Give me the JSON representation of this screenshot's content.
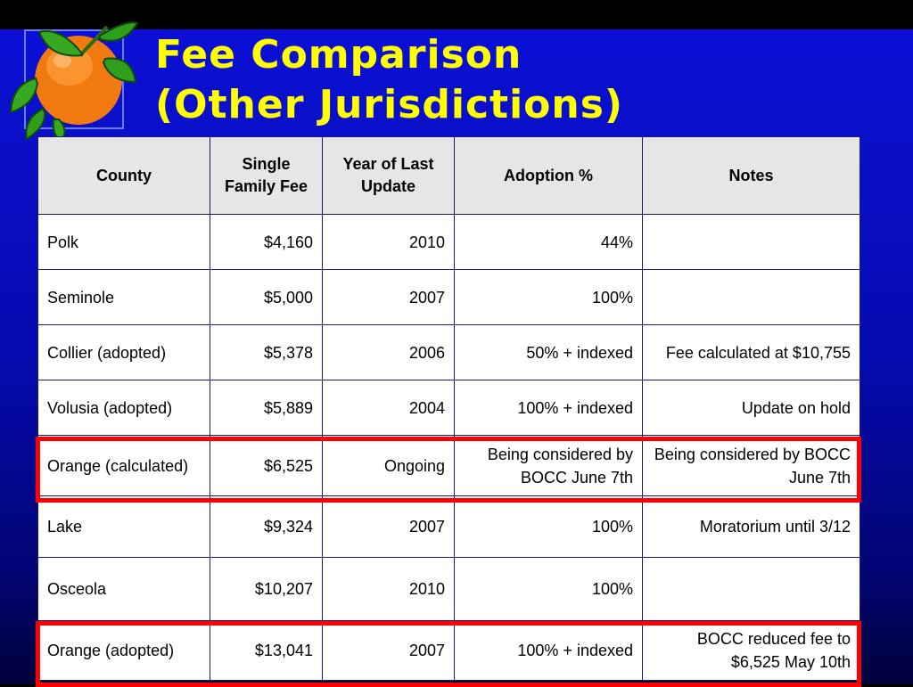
{
  "title": {
    "line1": "Fee Comparison",
    "line2": "(Other Jurisdictions)"
  },
  "logo": {
    "icon": "orange-fruit-icon"
  },
  "colors": {
    "title": "#ffff00",
    "highlight": "#ff0000",
    "background": "#0a0fc9"
  },
  "table": {
    "headers": [
      "County",
      "Single Family Fee",
      "Year of Last Update",
      "Adoption %",
      "Notes"
    ],
    "rows": [
      [
        "Polk",
        "$4,160",
        "2010",
        "44%",
        ""
      ],
      [
        "Seminole",
        "$5,000",
        "2007",
        "100%",
        ""
      ],
      [
        "Collier (adopted)",
        "$5,378",
        "2006",
        "50% + indexed",
        "Fee calculated at $10,755"
      ],
      [
        "Volusia (adopted)",
        "$5,889",
        "2004",
        "100% + indexed",
        "Update on hold"
      ],
      [
        "Orange (calculated)",
        "$6,525",
        "Ongoing",
        "Being considered by BOCC June 7th",
        "Being considered by BOCC June 7th"
      ],
      [
        "Lake",
        "$9,324",
        "2007",
        "100%",
        "Moratorium until 3/12"
      ],
      [
        "Osceola",
        "$10,207",
        "2010",
        "100%",
        ""
      ],
      [
        "Orange (adopted)",
        "$13,041",
        "2007",
        "100% + indexed",
        "BOCC reduced fee to $6,525 May 10th"
      ]
    ],
    "highlighted_rows": [
      "Orange (calculated)",
      "Orange (adopted)"
    ]
  }
}
